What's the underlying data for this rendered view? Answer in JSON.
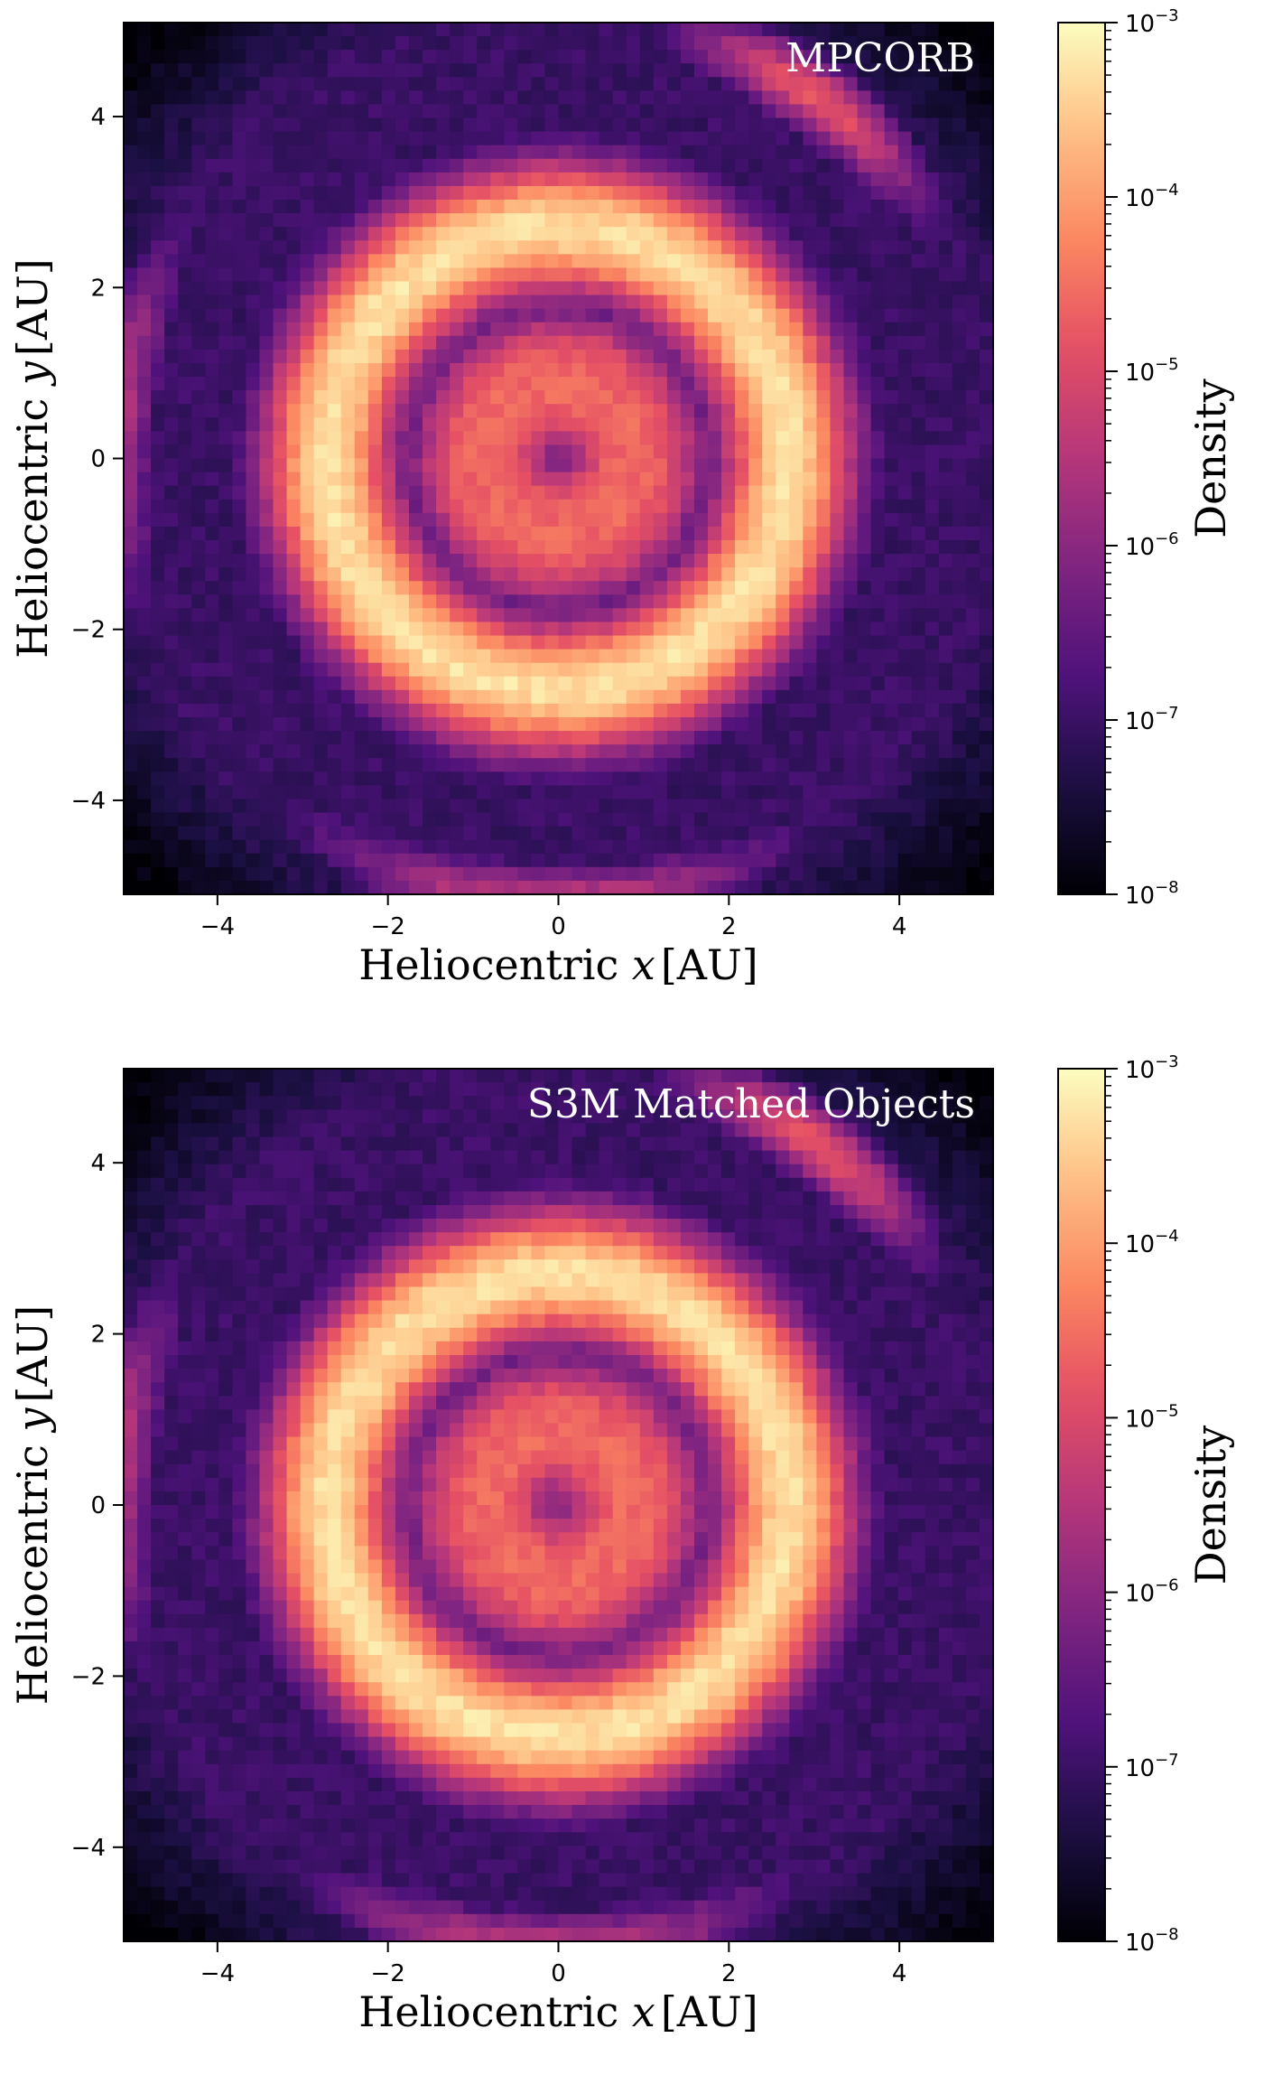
{
  "chart_data": [
    {
      "type": "heatmap",
      "title": "MPCORB",
      "xlabel_prefix": "Heliocentric ",
      "xlabel_var": "x",
      "xlabel_unit": "[AU]",
      "ylabel_prefix": "Heliocentric ",
      "ylabel_var": "y",
      "ylabel_unit": "[AU]",
      "xlim": [
        -5.1,
        5.1
      ],
      "ylim": [
        -5.1,
        5.1
      ],
      "x_ticks": [
        -4,
        -2,
        0,
        2,
        4
      ],
      "y_ticks": [
        -4,
        -2,
        0,
        2,
        4
      ],
      "x_tick_labels": [
        "−4",
        "−2",
        "0",
        "2",
        "4"
      ],
      "y_tick_labels": [
        "−4",
        "−2",
        "0",
        "2",
        "4"
      ],
      "colorbar": {
        "label": "Density",
        "scale": "log",
        "range": [
          1e-08,
          0.001
        ],
        "ticks": [
          {
            "base": "10",
            "exp": "−3",
            "value": 0.001
          },
          {
            "base": "10",
            "exp": "−4",
            "value": 0.0001
          },
          {
            "base": "10",
            "exp": "−5",
            "value": 1e-05
          },
          {
            "base": "10",
            "exp": "−6",
            "value": 1e-06
          },
          {
            "base": "10",
            "exp": "−7",
            "value": 1e-07
          },
          {
            "base": "10",
            "exp": "−8",
            "value": 1e-08
          }
        ],
        "colormap": "magma"
      },
      "features": {
        "main_belt_radius_au": 2.7,
        "main_belt_width_au": 1.25,
        "main_belt_peak_density": 0.0005,
        "inner_disk_radius_au": 1.6,
        "inner_disk_density": 3e-05,
        "center_density": 1e-06,
        "outer_density": 1e-07,
        "trojan_radius_au": 5.2,
        "trojan_density": 1.5e-05
      }
    },
    {
      "type": "heatmap",
      "title": "S3M Matched Objects",
      "xlabel_prefix": "Heliocentric ",
      "xlabel_var": "x",
      "xlabel_unit": "[AU]",
      "ylabel_prefix": "Heliocentric ",
      "ylabel_var": "y",
      "ylabel_unit": "[AU]",
      "xlim": [
        -5.1,
        5.1
      ],
      "ylim": [
        -5.1,
        5.1
      ],
      "x_ticks": [
        -4,
        -2,
        0,
        2,
        4
      ],
      "y_ticks": [
        -4,
        -2,
        0,
        2,
        4
      ],
      "x_tick_labels": [
        "−4",
        "−2",
        "0",
        "2",
        "4"
      ],
      "y_tick_labels": [
        "−4",
        "−2",
        "0",
        "2",
        "4"
      ],
      "colorbar": {
        "label": "Density",
        "scale": "log",
        "range": [
          1e-08,
          0.001
        ],
        "ticks": [
          {
            "base": "10",
            "exp": "−3",
            "value": 0.001
          },
          {
            "base": "10",
            "exp": "−4",
            "value": 0.0001
          },
          {
            "base": "10",
            "exp": "−5",
            "value": 1e-05
          },
          {
            "base": "10",
            "exp": "−6",
            "value": 1e-06
          },
          {
            "base": "10",
            "exp": "−7",
            "value": 1e-07
          },
          {
            "base": "10",
            "exp": "−8",
            "value": 1e-08
          }
        ],
        "colormap": "magma"
      },
      "features": {
        "main_belt_radius_au": 2.7,
        "main_belt_width_au": 1.25,
        "main_belt_peak_density": 0.0005,
        "inner_disk_radius_au": 1.6,
        "inner_disk_density": 3e-05,
        "center_density": 1e-06,
        "outer_density": 1e-07,
        "trojan_radius_au": 5.2,
        "trojan_density": 1.5e-05
      }
    }
  ]
}
